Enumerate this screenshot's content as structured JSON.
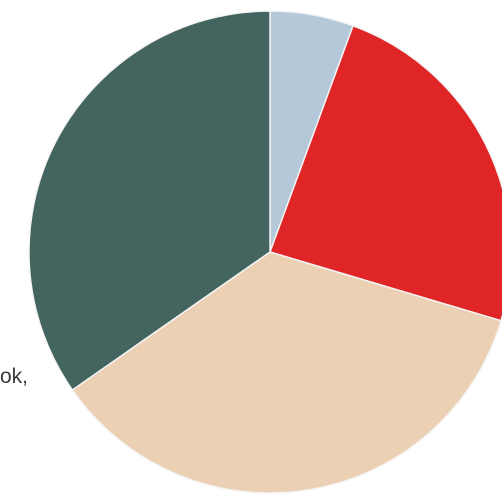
{
  "fragment_text": "ok,",
  "chart_data": {
    "type": "pie",
    "title": "",
    "start_angle_deg": 0,
    "direction": "clockwise",
    "slices": [
      {
        "value": 5.6,
        "color": "#b4c8da"
      },
      {
        "value": 24.0,
        "color": "#e02527"
      },
      {
        "value": 35.7,
        "color": "#ebd0b3"
      },
      {
        "value": 34.7,
        "color": "#44655f"
      }
    ],
    "slice_stroke_color": "#f4f4f4"
  }
}
